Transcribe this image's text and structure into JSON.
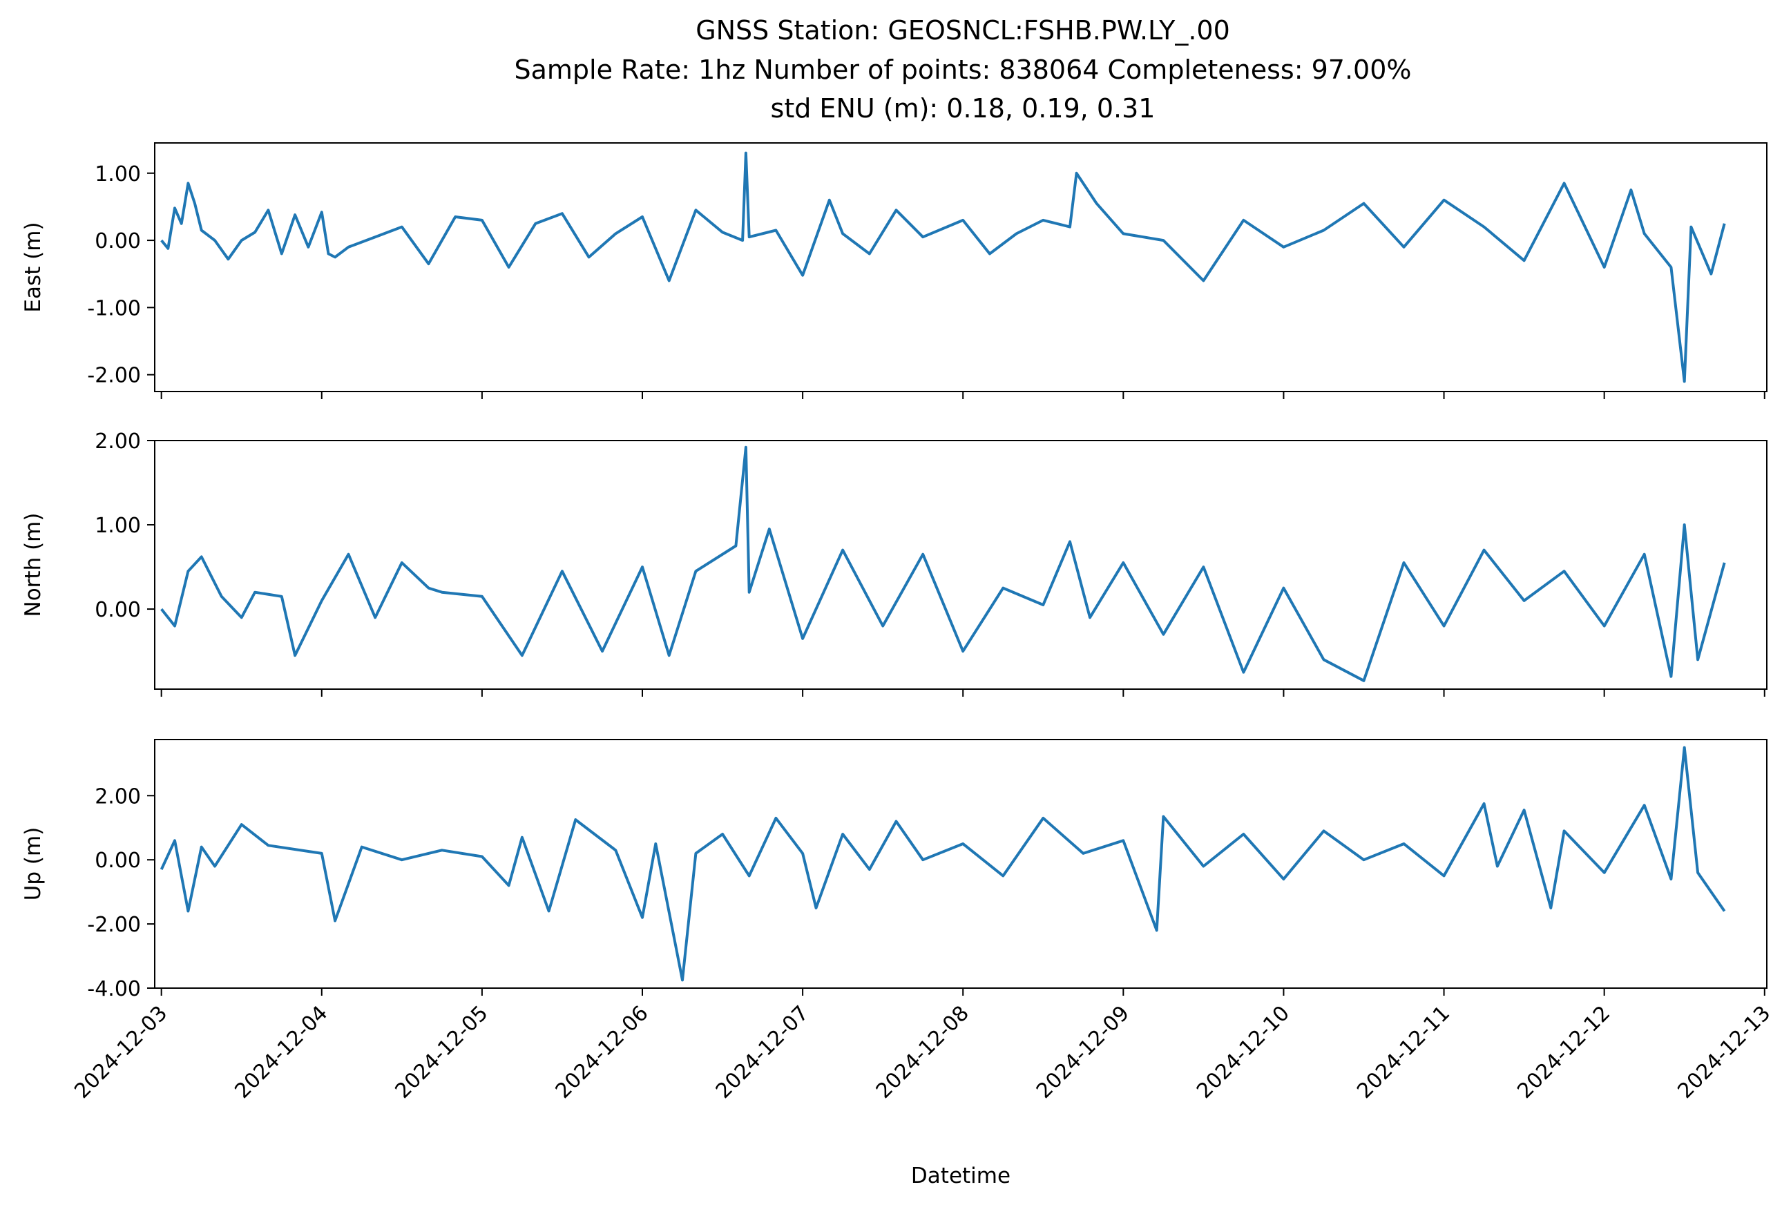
{
  "title_lines": [
    "GNSS Station: GEOSNCL:FSHB.PW.LY_.00",
    "Sample Rate: 1hz   Number of points: 838064    Completeness:  97.00%",
    "std ENU (m):  0.18, 0.19, 0.31"
  ],
  "colors": {
    "series": "#1f77b4",
    "axis": "#000000",
    "background": "#ffffff"
  },
  "chart_data": [
    {
      "type": "line",
      "ylabel": "East (m)",
      "xlabel": "",
      "yticks": [
        "1.00",
        "0.00",
        "-1.00",
        "-2.00"
      ],
      "ytick_values": [
        1.0,
        0.0,
        -1.0,
        -2.0
      ],
      "ylim": [
        -2.25,
        1.45
      ],
      "xlim": [
        "2024-12-02T23:00:00",
        "2024-12-13T00:20:00"
      ],
      "xtick_values": [
        "2024-12-03",
        "2024-12-04",
        "2024-12-05",
        "2024-12-06",
        "2024-12-07",
        "2024-12-08",
        "2024-12-09",
        "2024-12-10",
        "2024-12-11",
        "2024-12-12",
        "2024-12-13"
      ],
      "show_xtick_labels": false,
      "series": [
        {
          "x": [
            "2024-12-03T00:00",
            "2024-12-03T01:00",
            "2024-12-03T02:00",
            "2024-12-03T03:00",
            "2024-12-03T04:00",
            "2024-12-03T05:00",
            "2024-12-03T06:00",
            "2024-12-03T08:00",
            "2024-12-03T10:00",
            "2024-12-03T12:00",
            "2024-12-03T14:00",
            "2024-12-03T16:00",
            "2024-12-03T18:00",
            "2024-12-03T20:00",
            "2024-12-03T22:00",
            "2024-12-04T00:00",
            "2024-12-04T01:00",
            "2024-12-04T02:00",
            "2024-12-04T04:00",
            "2024-12-04T08:00",
            "2024-12-04T12:00",
            "2024-12-04T16:00",
            "2024-12-04T20:00",
            "2024-12-05T00:00",
            "2024-12-05T04:00",
            "2024-12-05T08:00",
            "2024-12-05T12:00",
            "2024-12-05T16:00",
            "2024-12-05T20:00",
            "2024-12-06T00:00",
            "2024-12-06T04:00",
            "2024-12-06T08:00",
            "2024-12-06T12:00",
            "2024-12-06T15:00",
            "2024-12-06T15:30",
            "2024-12-06T16:00",
            "2024-12-06T20:00",
            "2024-12-07T00:00",
            "2024-12-07T04:00",
            "2024-12-07T06:00",
            "2024-12-07T10:00",
            "2024-12-07T14:00",
            "2024-12-07T18:00",
            "2024-12-08T00:00",
            "2024-12-08T04:00",
            "2024-12-08T08:00",
            "2024-12-08T12:00",
            "2024-12-08T16:00",
            "2024-12-08T17:00",
            "2024-12-08T20:00",
            "2024-12-09T00:00",
            "2024-12-09T06:00",
            "2024-12-09T12:00",
            "2024-12-09T18:00",
            "2024-12-10T00:00",
            "2024-12-10T06:00",
            "2024-12-10T12:00",
            "2024-12-10T18:00",
            "2024-12-11T00:00",
            "2024-12-11T06:00",
            "2024-12-11T12:00",
            "2024-12-11T18:00",
            "2024-12-12T00:00",
            "2024-12-12T04:00",
            "2024-12-12T06:00",
            "2024-12-12T10:00",
            "2024-12-12T12:00",
            "2024-12-12T13:00",
            "2024-12-12T16:00",
            "2024-12-12T18:00"
          ],
          "y": [
            0.0,
            -0.12,
            0.48,
            0.25,
            0.85,
            0.55,
            0.15,
            0.0,
            -0.28,
            0.0,
            0.12,
            0.45,
            -0.2,
            0.38,
            -0.1,
            0.42,
            -0.2,
            -0.25,
            -0.1,
            0.05,
            0.2,
            -0.35,
            0.35,
            0.3,
            -0.4,
            0.25,
            0.4,
            -0.25,
            0.1,
            0.35,
            -0.6,
            0.45,
            0.12,
            0.0,
            1.3,
            0.05,
            0.15,
            -0.52,
            0.6,
            0.1,
            -0.2,
            0.45,
            0.05,
            0.3,
            -0.2,
            0.1,
            0.3,
            0.2,
            1.0,
            0.55,
            0.1,
            0.0,
            -0.6,
            0.3,
            -0.1,
            0.15,
            0.55,
            -0.1,
            0.6,
            0.2,
            -0.3,
            0.85,
            -0.4,
            0.75,
            0.1,
            -0.4,
            -2.1,
            0.2,
            -0.5,
            0.25
          ]
        }
      ]
    },
    {
      "type": "line",
      "ylabel": "North (m)",
      "xlabel": "",
      "yticks": [
        "2.00",
        "1.00",
        "0.00"
      ],
      "ytick_values": [
        2.0,
        1.0,
        0.0
      ],
      "ylim": [
        -0.95,
        2.0
      ],
      "xlim": [
        "2024-12-02T23:00:00",
        "2024-12-13T00:20:00"
      ],
      "xtick_values": [
        "2024-12-03",
        "2024-12-04",
        "2024-12-05",
        "2024-12-06",
        "2024-12-07",
        "2024-12-08",
        "2024-12-09",
        "2024-12-10",
        "2024-12-11",
        "2024-12-12",
        "2024-12-13"
      ],
      "show_xtick_labels": false,
      "series": [
        {
          "x": [
            "2024-12-03T00:00",
            "2024-12-03T02:00",
            "2024-12-03T04:00",
            "2024-12-03T06:00",
            "2024-12-03T09:00",
            "2024-12-03T12:00",
            "2024-12-03T14:00",
            "2024-12-03T18:00",
            "2024-12-03T20:00",
            "2024-12-04T00:00",
            "2024-12-04T04:00",
            "2024-12-04T08:00",
            "2024-12-04T12:00",
            "2024-12-04T16:00",
            "2024-12-04T18:00",
            "2024-12-05T00:00",
            "2024-12-05T06:00",
            "2024-12-05T12:00",
            "2024-12-05T18:00",
            "2024-12-06T00:00",
            "2024-12-06T04:00",
            "2024-12-06T08:00",
            "2024-12-06T14:00",
            "2024-12-06T15:30",
            "2024-12-06T16:00",
            "2024-12-06T19:00",
            "2024-12-07T00:00",
            "2024-12-07T06:00",
            "2024-12-07T12:00",
            "2024-12-07T18:00",
            "2024-12-08T00:00",
            "2024-12-08T06:00",
            "2024-12-08T12:00",
            "2024-12-08T16:00",
            "2024-12-08T19:00",
            "2024-12-09T00:00",
            "2024-12-09T06:00",
            "2024-12-09T12:00",
            "2024-12-09T18:00",
            "2024-12-10T00:00",
            "2024-12-10T06:00",
            "2024-12-10T12:00",
            "2024-12-10T18:00",
            "2024-12-11T00:00",
            "2024-12-11T06:00",
            "2024-12-11T12:00",
            "2024-12-11T18:00",
            "2024-12-12T00:00",
            "2024-12-12T06:00",
            "2024-12-12T10:00",
            "2024-12-12T12:00",
            "2024-12-12T14:00",
            "2024-12-12T18:00"
          ],
          "y": [
            0.0,
            -0.2,
            0.45,
            0.62,
            0.15,
            -0.1,
            0.2,
            0.15,
            -0.55,
            0.1,
            0.65,
            -0.1,
            0.55,
            0.25,
            0.2,
            0.15,
            -0.55,
            0.45,
            -0.5,
            0.5,
            -0.55,
            0.45,
            0.75,
            1.92,
            0.2,
            0.95,
            -0.35,
            0.7,
            -0.2,
            0.65,
            -0.5,
            0.25,
            0.05,
            0.8,
            -0.1,
            0.55,
            -0.3,
            0.5,
            -0.75,
            0.25,
            -0.6,
            -0.85,
            0.55,
            -0.2,
            0.7,
            0.1,
            0.45,
            -0.2,
            0.65,
            -0.8,
            1.0,
            -0.6,
            0.55
          ]
        }
      ]
    },
    {
      "type": "line",
      "ylabel": "Up (m)",
      "xlabel": "Datetime",
      "yticks": [
        "2.00",
        "0.00",
        "-2.00",
        "-4.00"
      ],
      "ytick_values": [
        2.0,
        0.0,
        -2.0,
        -4.0
      ],
      "ylim": [
        -4.0,
        3.75
      ],
      "xlim": [
        "2024-12-02T23:00:00",
        "2024-12-13T00:20:00"
      ],
      "xtick_values": [
        "2024-12-03",
        "2024-12-04",
        "2024-12-05",
        "2024-12-06",
        "2024-12-07",
        "2024-12-08",
        "2024-12-09",
        "2024-12-10",
        "2024-12-11",
        "2024-12-12",
        "2024-12-13"
      ],
      "xtick_labels": [
        "2024-12-03",
        "2024-12-04",
        "2024-12-05",
        "2024-12-06",
        "2024-12-07",
        "2024-12-08",
        "2024-12-09",
        "2024-12-10",
        "2024-12-11",
        "2024-12-12",
        "2024-12-13"
      ],
      "show_xtick_labels": true,
      "series": [
        {
          "x": [
            "2024-12-03T00:00",
            "2024-12-03T02:00",
            "2024-12-03T04:00",
            "2024-12-03T06:00",
            "2024-12-03T08:00",
            "2024-12-03T12:00",
            "2024-12-03T16:00",
            "2024-12-04T00:00",
            "2024-12-04T02:00",
            "2024-12-04T06:00",
            "2024-12-04T12:00",
            "2024-12-04T18:00",
            "2024-12-05T00:00",
            "2024-12-05T04:00",
            "2024-12-05T06:00",
            "2024-12-05T10:00",
            "2024-12-05T14:00",
            "2024-12-05T20:00",
            "2024-12-06T00:00",
            "2024-12-06T02:00",
            "2024-12-06T06:00",
            "2024-12-06T08:00",
            "2024-12-06T12:00",
            "2024-12-06T16:00",
            "2024-12-06T20:00",
            "2024-12-07T00:00",
            "2024-12-07T02:00",
            "2024-12-07T06:00",
            "2024-12-07T10:00",
            "2024-12-07T14:00",
            "2024-12-07T18:00",
            "2024-12-08T00:00",
            "2024-12-08T06:00",
            "2024-12-08T12:00",
            "2024-12-08T18:00",
            "2024-12-09T00:00",
            "2024-12-09T05:00",
            "2024-12-09T06:00",
            "2024-12-09T12:00",
            "2024-12-09T18:00",
            "2024-12-10T00:00",
            "2024-12-10T06:00",
            "2024-12-10T12:00",
            "2024-12-10T18:00",
            "2024-12-11T00:00",
            "2024-12-11T06:00",
            "2024-12-11T08:00",
            "2024-12-11T12:00",
            "2024-12-11T16:00",
            "2024-12-11T18:00",
            "2024-12-12T00:00",
            "2024-12-12T06:00",
            "2024-12-12T10:00",
            "2024-12-12T12:00",
            "2024-12-12T14:00",
            "2024-12-12T18:00"
          ],
          "y": [
            -0.3,
            0.6,
            -1.6,
            0.4,
            -0.2,
            1.1,
            0.45,
            0.2,
            -1.9,
            0.4,
            0.0,
            0.3,
            0.1,
            -0.8,
            0.7,
            -1.6,
            1.25,
            0.3,
            -1.8,
            0.5,
            -3.75,
            0.2,
            0.8,
            -0.5,
            1.3,
            0.2,
            -1.5,
            0.8,
            -0.3,
            1.2,
            0.0,
            0.5,
            -0.5,
            1.3,
            0.2,
            0.6,
            -2.2,
            1.35,
            -0.2,
            0.8,
            -0.6,
            0.9,
            0.0,
            0.5,
            -0.5,
            1.75,
            -0.2,
            1.55,
            -1.5,
            0.9,
            -0.4,
            1.7,
            -0.6,
            3.5,
            -0.4,
            -1.6
          ]
        }
      ]
    }
  ]
}
